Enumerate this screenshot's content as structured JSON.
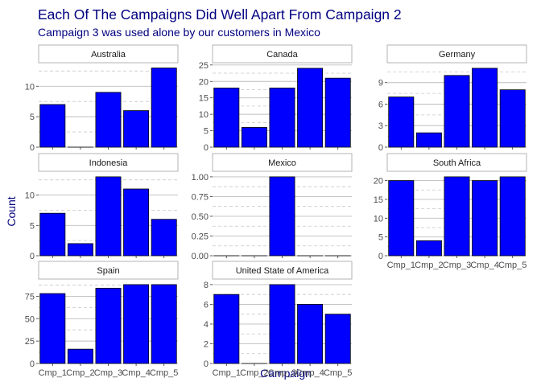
{
  "chart_data": {
    "type": "bar",
    "facet": "country",
    "title": "Each Of The Campaigns Did Well Apart From Campaign 2",
    "subtitle": "Campaign 3 was used alone by our customers in Mexico",
    "xlabel": "Campaign",
    "ylabel": "Count",
    "categories": [
      "Cmp_1",
      "Cmp_2",
      "Cmp_3",
      "Cmp_4",
      "Cmp_5"
    ],
    "bar_color": "#0000ff",
    "grid": true,
    "panels": [
      {
        "name": "Australia",
        "values": [
          7,
          0,
          9,
          6,
          13
        ],
        "ylim": [
          0,
          13.6
        ],
        "yticks": [
          0,
          5,
          10
        ]
      },
      {
        "name": "Canada",
        "values": [
          18,
          6,
          18,
          24,
          21
        ],
        "ylim": [
          0,
          25.2
        ],
        "yticks": [
          0,
          5,
          10,
          15,
          20,
          25
        ]
      },
      {
        "name": "Germany",
        "values": [
          7,
          2,
          10,
          11,
          8
        ],
        "ylim": [
          0,
          11.55
        ],
        "yticks": [
          0,
          3,
          6,
          9
        ]
      },
      {
        "name": "Indonesia",
        "values": [
          7,
          2,
          13,
          11,
          6
        ],
        "ylim": [
          0,
          13.65
        ],
        "yticks": [
          0,
          5,
          10
        ]
      },
      {
        "name": "Mexico",
        "values": [
          0,
          0,
          1,
          0,
          0
        ],
        "ylim": [
          0,
          1.05
        ],
        "yticks": [
          0,
          0.25,
          0.5,
          0.75,
          1
        ],
        "yticklabels": [
          "0.00",
          "0.25",
          "0.50",
          "0.75",
          "1.00"
        ]
      },
      {
        "name": "South Africa",
        "values": [
          20,
          4,
          21,
          20,
          21
        ],
        "ylim": [
          0,
          22.05
        ],
        "yticks": [
          0,
          5,
          10,
          15,
          20
        ]
      },
      {
        "name": "Spain",
        "values": [
          78,
          16,
          84,
          88,
          88
        ],
        "ylim": [
          0,
          92.4
        ],
        "yticks": [
          0,
          25,
          50,
          75
        ]
      },
      {
        "name": "United State of America",
        "values": [
          7,
          0,
          8,
          6,
          5
        ],
        "ylim": [
          0,
          8.4
        ],
        "yticks": [
          0,
          2,
          4,
          6,
          8
        ]
      }
    ]
  }
}
